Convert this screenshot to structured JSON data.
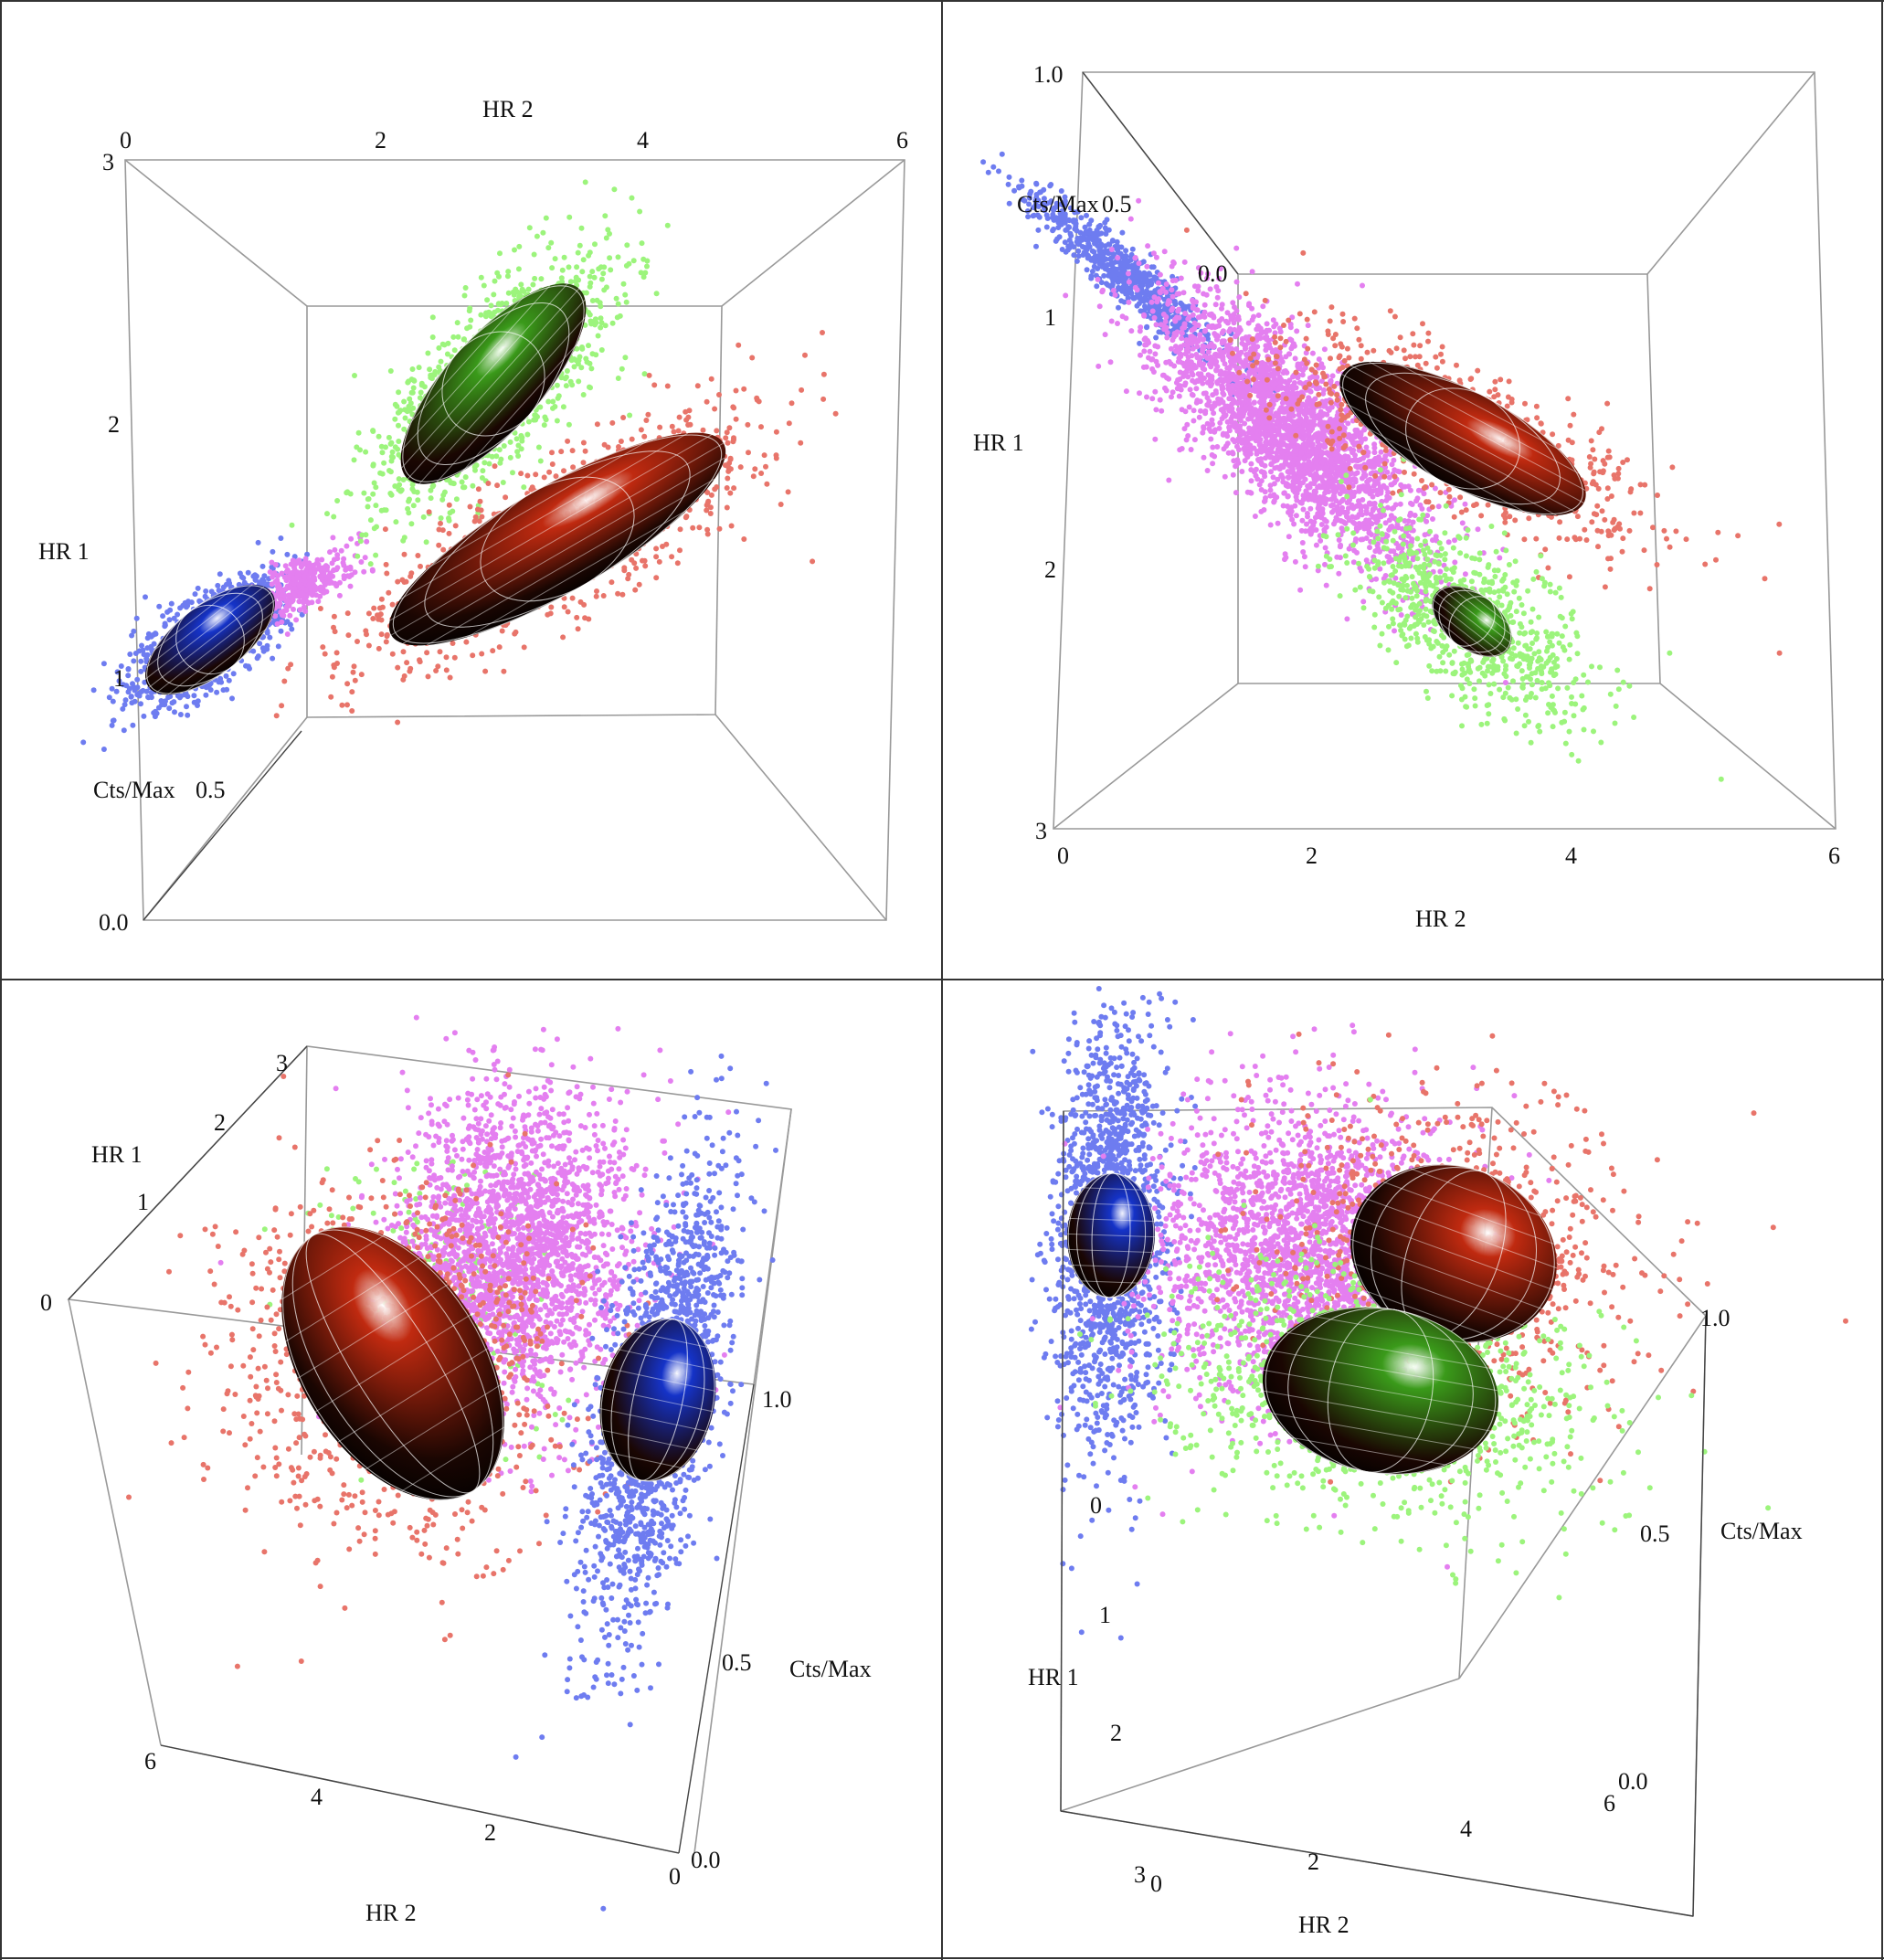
{
  "chart_data": [
    {
      "type": "scatter3d",
      "view": "top",
      "axes": {
        "hr2": {
          "label": "HR 2",
          "range": [
            0,
            6
          ],
          "ticks": [
            "0",
            "2",
            "4",
            "6"
          ]
        },
        "hr1": {
          "label": "HR 1",
          "range": [
            0,
            3
          ],
          "ticks": [
            "3",
            "2",
            "1"
          ]
        },
        "cts": {
          "label": "Cts/Max",
          "range": [
            0,
            1
          ],
          "ticks": [
            "0.0",
            "0.5"
          ]
        }
      },
      "series": [
        {
          "name": "blue",
          "color": "#6e7cf0",
          "ellipsoid_color": "#1533c8",
          "hr2_center": 0.8,
          "hr1_center": 0.95,
          "cts_center": 0.3
        },
        {
          "name": "violet",
          "color": "#e47ff0",
          "hr2_center": 1.9,
          "hr1_center": 1.2,
          "cts_center": 0.55
        },
        {
          "name": "green",
          "color": "#9cf47c",
          "ellipsoid_color": "#3a9a1a",
          "hr2_center": 2.9,
          "hr1_center": 2.0,
          "cts_center": 0.5
        },
        {
          "name": "red",
          "color": "#e8746a",
          "ellipsoid_color": "#c02a10",
          "hr2_center": 3.2,
          "hr1_center": 1.35,
          "cts_center": 0.5
        }
      ]
    },
    {
      "type": "scatter3d",
      "view": "front",
      "axes": {
        "hr2": {
          "label": "HR 2",
          "range": [
            0,
            6
          ],
          "ticks": [
            "0",
            "2",
            "4",
            "6"
          ]
        },
        "hr1": {
          "label": "HR 1",
          "range": [
            0,
            3
          ],
          "ticks": [
            "1",
            "2",
            "3"
          ]
        },
        "cts": {
          "label": "Cts/Max",
          "range": [
            0,
            1
          ],
          "ticks": [
            "1.0",
            "0.5",
            "0.0"
          ]
        }
      }
    },
    {
      "type": "scatter3d",
      "view": "oblique-left",
      "axes": {
        "hr2": {
          "label": "HR 2",
          "range": [
            0,
            6
          ],
          "ticks": [
            "6",
            "4",
            "2",
            "0"
          ]
        },
        "hr1": {
          "label": "HR 1",
          "range": [
            0,
            3
          ],
          "ticks": [
            "0",
            "1",
            "2",
            "3"
          ]
        },
        "cts": {
          "label": "Cts/Max",
          "range": [
            0,
            1
          ],
          "ticks": [
            "0.0",
            "0.5",
            "1.0"
          ]
        }
      }
    },
    {
      "type": "scatter3d",
      "view": "oblique-right",
      "axes": {
        "hr2": {
          "label": "HR 2",
          "range": [
            0,
            6
          ],
          "ticks": [
            "0",
            "2",
            "4",
            "6"
          ]
        },
        "hr1": {
          "label": "HR 1",
          "range": [
            0,
            3
          ],
          "ticks": [
            "0",
            "1",
            "2",
            "3"
          ]
        },
        "cts": {
          "label": "Cts/Max",
          "range": [
            0,
            1
          ],
          "ticks": [
            "0.0",
            "0.5",
            "1.0"
          ]
        }
      }
    }
  ]
}
